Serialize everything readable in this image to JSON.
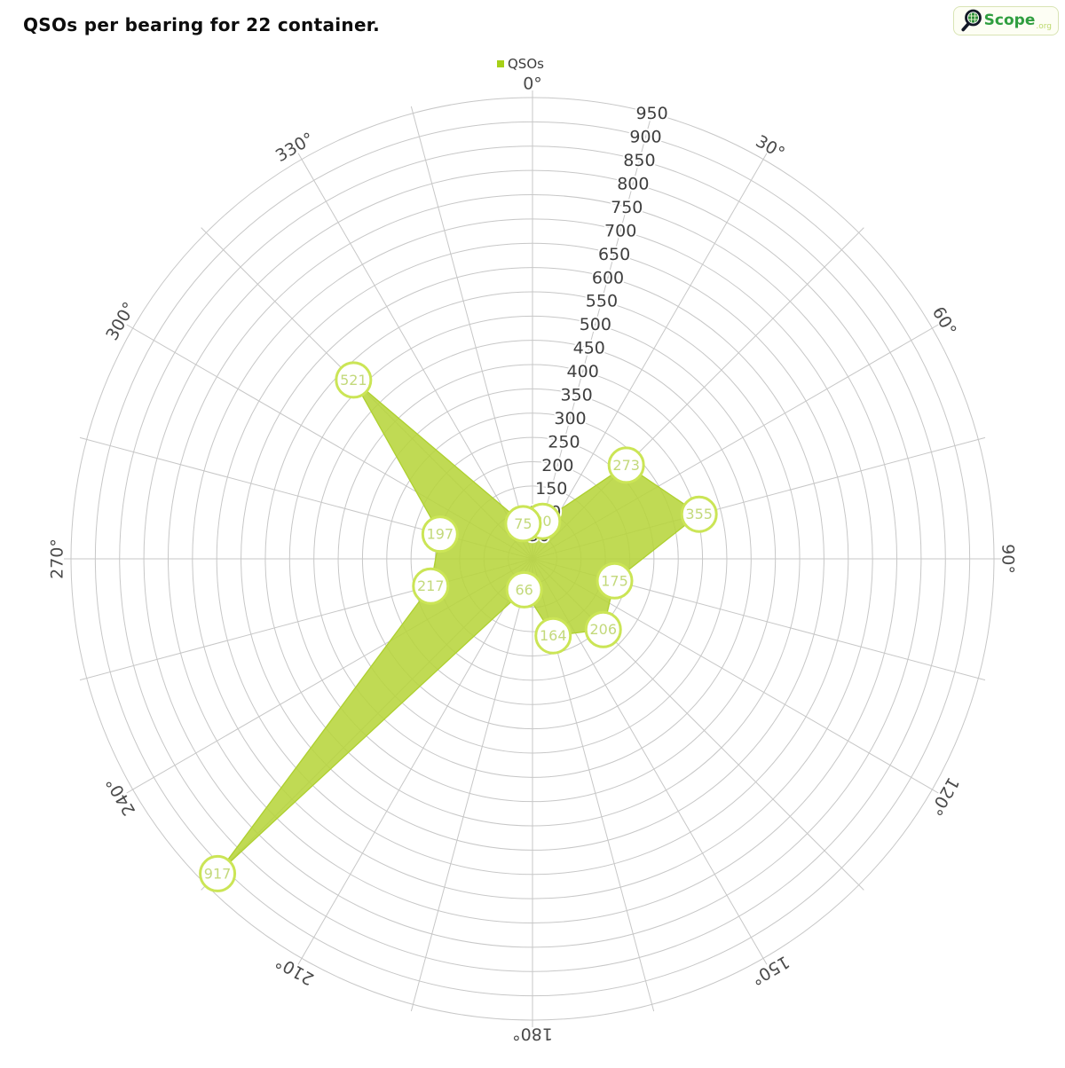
{
  "header": {
    "title": "QSOs per bearing for 22 container."
  },
  "logo": {
    "name": "Scope",
    "suffix": ".org",
    "icon": "magnifier-globe-icon",
    "text_color": "#2f9e3f",
    "suffix_color": "#bcd96d"
  },
  "legend": {
    "label": "QSOs",
    "swatch_color": "#a6d018"
  },
  "chart_data": {
    "type": "radar",
    "title": "QSOs per bearing for 22 container.",
    "legend_position": "top-center",
    "grid": true,
    "rlim": [
      0,
      950
    ],
    "radial_ticks": [
      50,
      100,
      150,
      200,
      250,
      300,
      350,
      400,
      450,
      500,
      550,
      600,
      650,
      700,
      750,
      800,
      850,
      900,
      950
    ],
    "radial_tick_bearing_deg": 15,
    "angular_tick_labels": [
      "0°",
      "30°",
      "60°",
      "90°",
      "120°",
      "150°",
      "180°",
      "210°",
      "240°",
      "270°",
      "300°",
      "330°"
    ],
    "spoke_step_deg": 15,
    "grid_color": "#c7c7c7",
    "series": [
      {
        "name": "QSOs",
        "fill_color": "#b7d53c",
        "fill_opacity": 0.88,
        "stroke_color": "#aed02f",
        "marker": {
          "fill": "#ffffff",
          "stroke": "#cbe556",
          "text_color": "#c3d97b",
          "radius": 19.5
        },
        "points": [
          {
            "bearing_deg": 15,
            "value": 80
          },
          {
            "bearing_deg": 45,
            "value": 273
          },
          {
            "bearing_deg": 75,
            "value": 355
          },
          {
            "bearing_deg": 105,
            "value": 175
          },
          {
            "bearing_deg": 135,
            "value": 206
          },
          {
            "bearing_deg": 165,
            "value": 164
          },
          {
            "bearing_deg": 195,
            "value": 66
          },
          {
            "bearing_deg": 225,
            "value": 917
          },
          {
            "bearing_deg": 255,
            "value": 217
          },
          {
            "bearing_deg": 285,
            "value": 197
          },
          {
            "bearing_deg": 315,
            "value": 521
          },
          {
            "bearing_deg": 345,
            "value": 75
          }
        ]
      }
    ]
  }
}
